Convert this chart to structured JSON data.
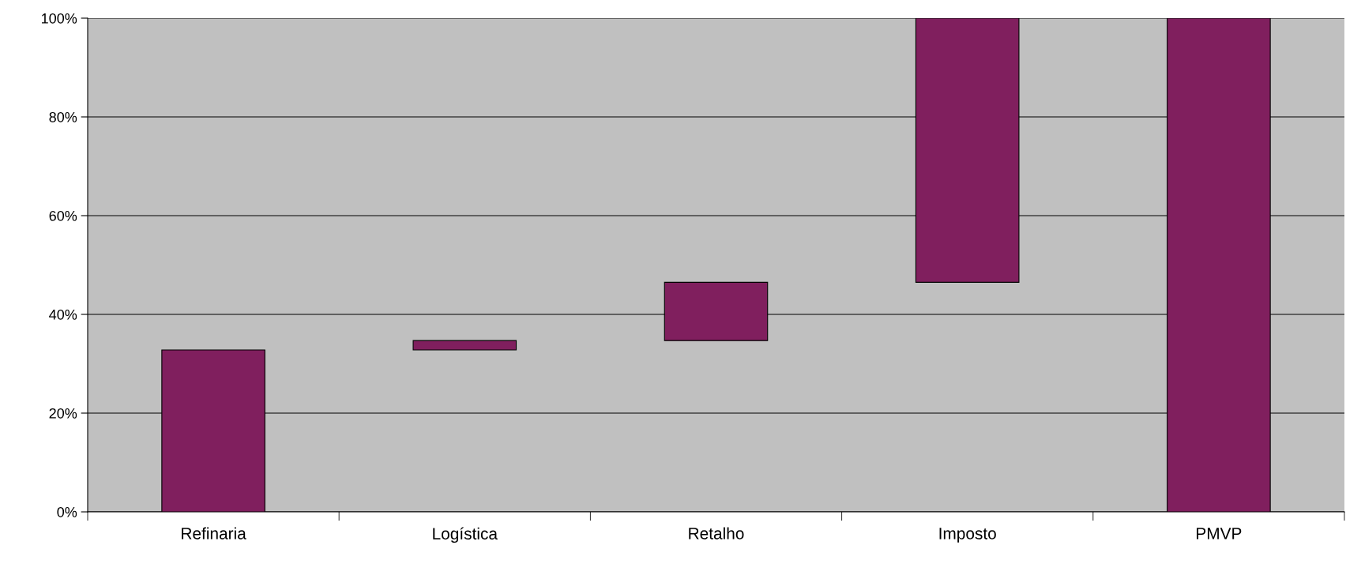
{
  "chart_data": {
    "type": "bar",
    "categories": [
      "Refinaria",
      "Logística",
      "Retalho",
      "Imposto",
      "PMVP"
    ],
    "values": [
      32.8,
      1.9,
      11.8,
      53.5,
      100
    ],
    "base": [
      0,
      32.8,
      34.7,
      46.5,
      0
    ],
    "color": "#801f5e",
    "ylim": [
      0,
      100
    ],
    "yticks": [
      {
        "value": 0,
        "label": "0%"
      },
      {
        "value": 20,
        "label": "20%"
      },
      {
        "value": 40,
        "label": "40%"
      },
      {
        "value": 60,
        "label": "60%"
      },
      {
        "value": 80,
        "label": "80%"
      },
      {
        "value": 100,
        "label": "100%"
      }
    ],
    "grid": "y",
    "legend": false
  }
}
